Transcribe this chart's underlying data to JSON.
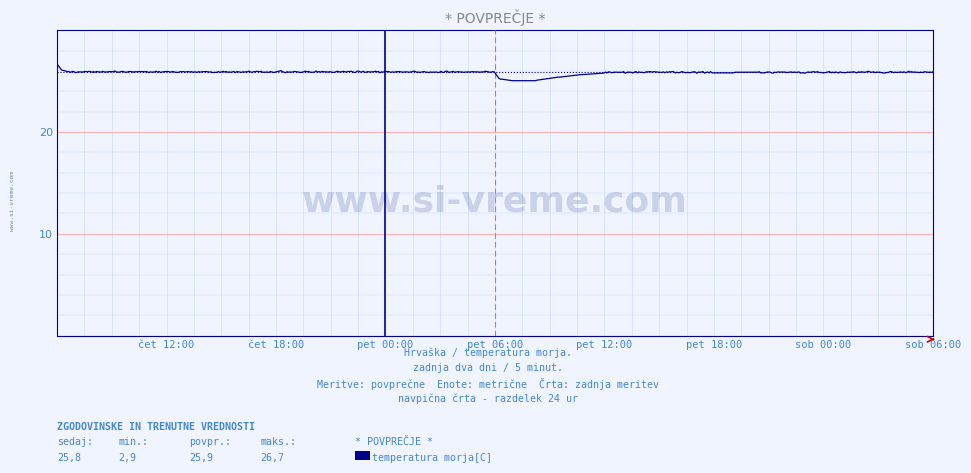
{
  "title": "* POVPREČJE *",
  "bg_color": "#f0f4ff",
  "plot_bg_color": "#f0f4ff",
  "line_color": "#00008b",
  "avg_line_color": "#00008b",
  "grid_color_major": "#ffaaaa",
  "grid_color_minor": "#c8d8f0",
  "vline_solid_color": "#000099",
  "vline_dashed_color": "#ff44ff",
  "xlabel_color": "#4488cc",
  "title_color": "#888888",
  "watermark_color": "#1a3a8a",
  "ylim": [
    0,
    30
  ],
  "yticks": [
    10,
    20
  ],
  "ylabel_fontsize": 8,
  "xlabel_fontsize": 7.5,
  "title_fontsize": 10,
  "n_points": 576,
  "avg_value": 25.9,
  "max_value": 26.7,
  "min_value": 2.9,
  "current_value": 25.8,
  "x_tick_labels": [
    "čet 12:00",
    "čet 18:00",
    "pet 00:00",
    "pet 06:00",
    "pet 12:00",
    "pet 18:00",
    "sob 00:00",
    "sob 06:00"
  ],
  "x_tick_positions": [
    0.125,
    0.25,
    0.375,
    0.5,
    0.625,
    0.75,
    0.875,
    1.0
  ],
  "footer_lines": [
    "Hrvaška / temperatura morja.",
    "zadnja dva dni / 5 minut.",
    "Meritve: povprečne  Enote: metrične  Črta: zadnja meritev",
    "navpična črta - razdelek 24 ur"
  ],
  "legend_header": "ZGODOVINSKE IN TRENUTNE VREDNOSTI",
  "legend_labels": [
    "sedaj:",
    "min.:",
    "povpr.:",
    "maks.:",
    "* POVPREČJE *"
  ],
  "legend_values": [
    "25,8",
    "2,9",
    "25,9",
    "26,7"
  ],
  "legend_series": "temperatura morja[C]",
  "legend_square_color": "#00008b",
  "vline_solid_x": 0.375,
  "vline_dashed_x": 0.5
}
